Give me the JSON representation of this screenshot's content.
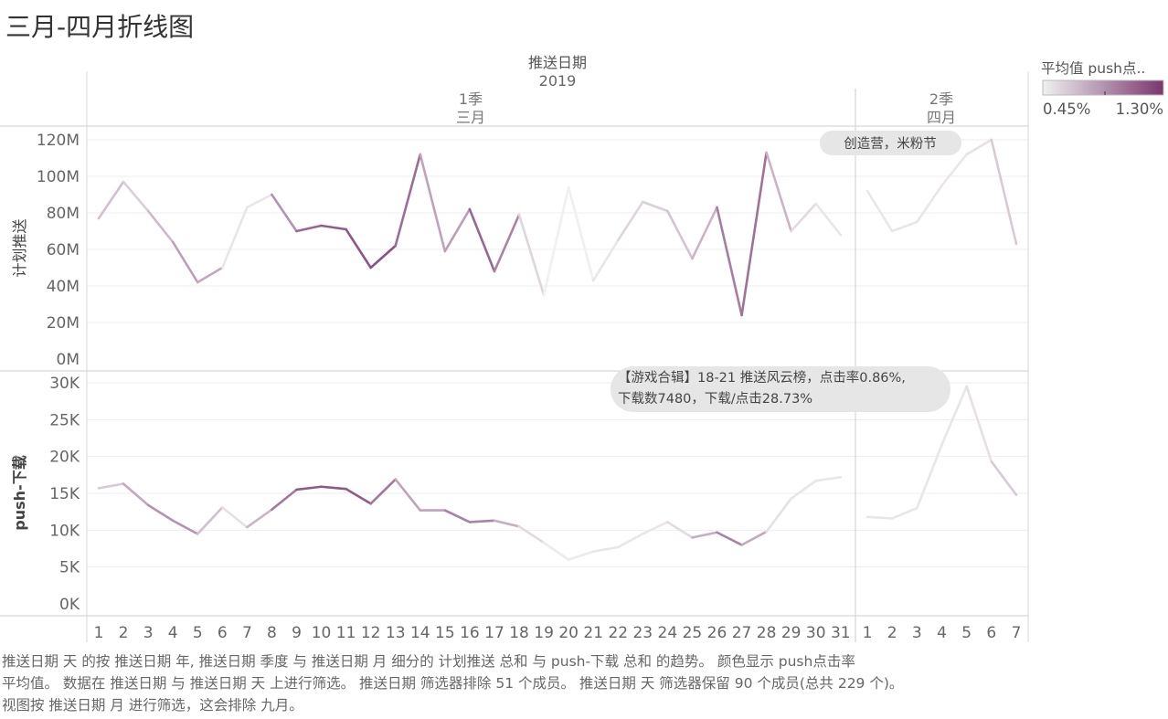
{
  "title": "三月-四月折线图",
  "caption": [
    "推送日期 天 的按 推送日期 年, 推送日期 季度 与 推送日期 月 细分的 计划推送 总和 与 push-下载 总和 的趋势。 颜色显示 push点击率",
    "平均值。 数据在 推送日期 与 推送日期 天 上进行筛选。 推送日期 筛选器排除 51 个成员。 推送日期 天 筛选器保留 90 个成员(总共 229 个)。",
    "视图按 推送日期 月 进行筛选，这会排除 九月。"
  ],
  "chart_data": {
    "type": "line",
    "header": {
      "field": "推送日期",
      "year": "2019"
    },
    "panels": [
      {
        "quarter": "1季",
        "month": "三月",
        "days": [
          "1",
          "2",
          "3",
          "4",
          "5",
          "6",
          "7",
          "8",
          "9",
          "10",
          "11",
          "12",
          "13",
          "14",
          "15",
          "16",
          "17",
          "18",
          "19",
          "20",
          "21",
          "22",
          "23",
          "24",
          "25",
          "26",
          "27",
          "28",
          "29",
          "30",
          "31"
        ]
      },
      {
        "quarter": "2季",
        "month": "四月",
        "days": [
          "1",
          "2",
          "3",
          "4",
          "5",
          "6",
          "7"
        ]
      }
    ],
    "color_legend": {
      "title": "平均值 push点..",
      "min_label": "0.45%",
      "max_label": "1.30%",
      "min": 0.45,
      "max": 1.3,
      "low_color": "#f0f0f0",
      "high_color": "#79366f"
    },
    "rows": [
      {
        "ylabel": "计划推送",
        "ylim": [
          0,
          120000000
        ],
        "ticks": [
          {
            "v": 0,
            "label": "0M"
          },
          {
            "v": 20000000,
            "label": "20M"
          },
          {
            "v": 40000000,
            "label": "40M"
          },
          {
            "v": 60000000,
            "label": "60M"
          },
          {
            "v": 80000000,
            "label": "80M"
          },
          {
            "v": 100000000,
            "label": "100M"
          },
          {
            "v": 120000000,
            "label": "120M"
          }
        ],
        "series": [
          [
            77,
            97,
            81,
            64,
            42,
            50,
            83,
            90,
            70,
            73,
            71,
            50,
            62,
            112,
            59,
            82,
            48,
            79,
            35,
            94,
            43,
            65,
            86,
            81,
            55,
            83,
            24,
            113,
            70,
            85,
            68
          ],
          [
            92,
            70,
            75,
            95,
            112,
            120,
            63
          ]
        ]
      },
      {
        "ylabel": "push-下载",
        "ylim": [
          0,
          30000
        ],
        "ticks": [
          {
            "v": 0,
            "label": "0K"
          },
          {
            "v": 5000,
            "label": "5K"
          },
          {
            "v": 10000,
            "label": "10K"
          },
          {
            "v": 15000,
            "label": "15K"
          },
          {
            "v": 20000,
            "label": "20K"
          },
          {
            "v": 25000,
            "label": "25K"
          },
          {
            "v": 30000,
            "label": "30K"
          }
        ],
        "series": [
          [
            15700,
            16300,
            13400,
            11300,
            9500,
            13100,
            10400,
            12800,
            15500,
            15900,
            15600,
            13600,
            16900,
            12700,
            12700,
            11100,
            11300,
            10500,
            8300,
            6000,
            7100,
            7700,
            9500,
            11100,
            9000,
            9700,
            8000,
            9800,
            14300,
            16700,
            17200
          ],
          [
            11800,
            11600,
            13000,
            21600,
            29500,
            19300,
            14800
          ]
        ]
      }
    ],
    "colors": [
      [
        [
          0.75,
          0.6,
          0.6,
          0.8,
          0.85,
          0.7,
          0.3,
          0.7,
          1.05,
          1.1,
          1.15,
          1.15,
          1.2,
          0.9,
          0.7,
          0.95,
          1.2,
          0.7,
          0.45,
          0.4,
          0.45,
          0.55,
          0.6,
          0.6,
          0.7,
          0.75,
          1.2,
          0.85,
          0.6,
          0.5,
          0.5
        ],
        [
          0.5,
          0.5,
          0.5,
          0.5,
          0.5,
          0.55,
          0.7
        ]
      ],
      [
        [
          0.55,
          0.7,
          0.85,
          0.9,
          0.85,
          0.5,
          0.55,
          0.9,
          1.1,
          1.15,
          1.15,
          1.1,
          0.9,
          0.7,
          0.9,
          1.0,
          0.9,
          0.6,
          0.5,
          0.45,
          0.5,
          0.5,
          0.5,
          0.5,
          0.6,
          0.9,
          1.0,
          0.55,
          0.5,
          0.5,
          0.5
        ],
        [
          0.5,
          0.5,
          0.5,
          0.5,
          0.5,
          0.55,
          0.7
        ]
      ]
    ],
    "annotations": [
      {
        "row": 0,
        "panel": 1,
        "day_index": 0,
        "text": [
          "创造营，米粉节"
        ]
      },
      {
        "row": 1,
        "panel": 0,
        "day_index": 21,
        "text": [
          "【游戏合辑】18-21 推送风云榜，点击率0.86%,",
          "下载数7480，下载/点击28.73%"
        ]
      }
    ]
  }
}
